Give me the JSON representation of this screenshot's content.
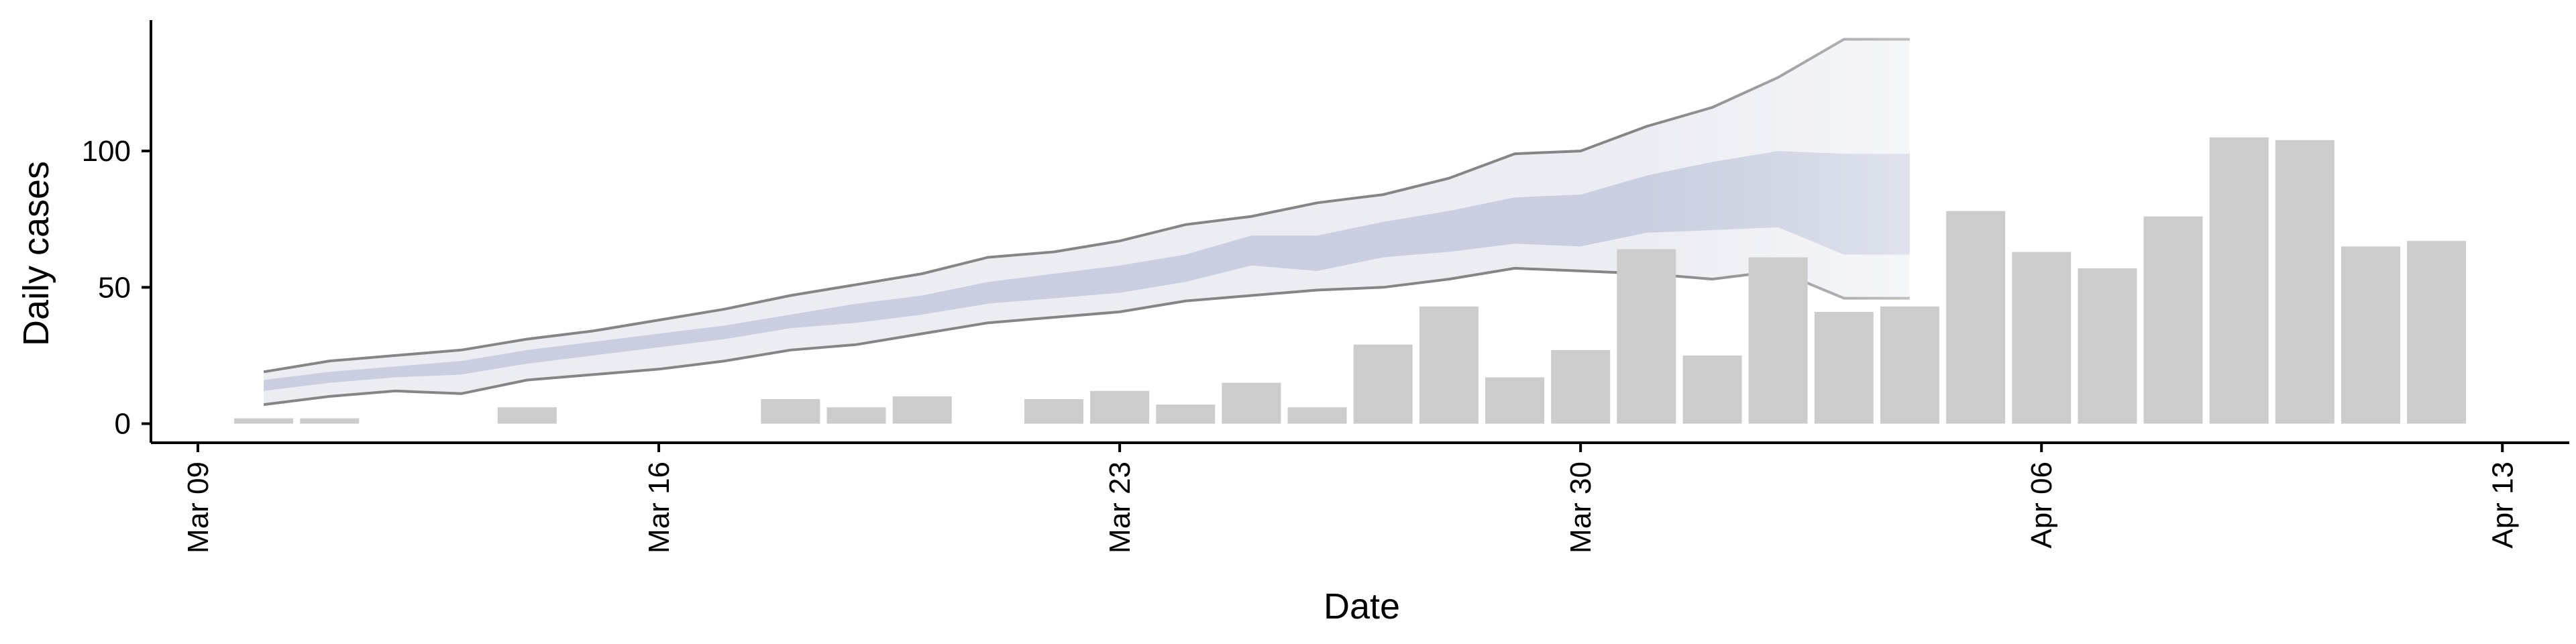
{
  "chart_data": {
    "type": "bar",
    "xlabel": "Date",
    "ylabel": "Daily cases",
    "x_ticks": [
      "Mar 09",
      "Mar 16",
      "Mar 23",
      "Mar 30",
      "Apr 06",
      "Apr 13"
    ],
    "y_ticks": [
      0,
      50,
      100
    ],
    "ylim": [
      -7,
      148
    ],
    "xlim": [
      "2020-03-09",
      "2020-04-13"
    ],
    "grid": false,
    "legend": "none",
    "colors": {
      "bars": "#cccccc",
      "ribbon_outer": "#ecedf3",
      "ribbon_inner": "#c9cfe0",
      "bound_line": "#858585",
      "axis": "#000000"
    },
    "bars": {
      "name": "",
      "dates": [
        "2020-03-10",
        "2020-03-11",
        "2020-03-12",
        "2020-03-13",
        "2020-03-14",
        "2020-03-15",
        "2020-03-16",
        "2020-03-17",
        "2020-03-18",
        "2020-03-19",
        "2020-03-20",
        "2020-03-21",
        "2020-03-22",
        "2020-03-23",
        "2020-03-24",
        "2020-03-25",
        "2020-03-26",
        "2020-03-27",
        "2020-03-28",
        "2020-03-29",
        "2020-03-30",
        "2020-03-31",
        "2020-04-01",
        "2020-04-02",
        "2020-04-03",
        "2020-04-04",
        "2020-04-05",
        "2020-04-06",
        "2020-04-07",
        "2020-04-08",
        "2020-04-09",
        "2020-04-10",
        "2020-04-11",
        "2020-04-12"
      ],
      "values": [
        1,
        1,
        0,
        0,
        6,
        0,
        0,
        0,
        9,
        6,
        10,
        0,
        9,
        12,
        7,
        15,
        6,
        29,
        43,
        17,
        27,
        64,
        25,
        61,
        41,
        43,
        78,
        63,
        57,
        76,
        105,
        104,
        65,
        67
      ]
    },
    "band": {
      "dates": [
        "2020-03-10",
        "2020-03-11",
        "2020-03-12",
        "2020-03-13",
        "2020-03-14",
        "2020-03-15",
        "2020-03-16",
        "2020-03-17",
        "2020-03-18",
        "2020-03-19",
        "2020-03-20",
        "2020-03-21",
        "2020-03-22",
        "2020-03-23",
        "2020-03-24",
        "2020-03-25",
        "2020-03-26",
        "2020-03-27",
        "2020-03-28",
        "2020-03-29",
        "2020-03-30",
        "2020-03-31",
        "2020-04-01",
        "2020-04-02",
        "2020-04-03",
        "2020-04-04"
      ],
      "lower_outer": [
        7,
        10,
        12,
        11,
        16,
        18,
        20,
        23,
        27,
        29,
        33,
        37,
        39,
        41,
        45,
        47,
        49,
        50,
        53,
        57,
        56,
        55,
        53,
        56,
        46,
        46
      ],
      "upper_outer": [
        19,
        23,
        25,
        27,
        31,
        34,
        38,
        42,
        47,
        51,
        55,
        61,
        63,
        67,
        73,
        76,
        81,
        84,
        90,
        99,
        100,
        109,
        116,
        127,
        141,
        141
      ],
      "lower_inner": [
        12,
        15,
        17,
        18,
        22,
        25,
        28,
        31,
        35,
        37,
        40,
        44,
        46,
        48,
        52,
        58,
        56,
        61,
        63,
        66,
        65,
        70,
        71,
        72,
        62,
        62
      ],
      "upper_inner": [
        16,
        19,
        21,
        23,
        27,
        30,
        33,
        36,
        40,
        44,
        47,
        52,
        55,
        58,
        62,
        69,
        69,
        74,
        78,
        83,
        84,
        91,
        96,
        100,
        99,
        99
      ],
      "forecast_from": "2020-03-31"
    }
  }
}
